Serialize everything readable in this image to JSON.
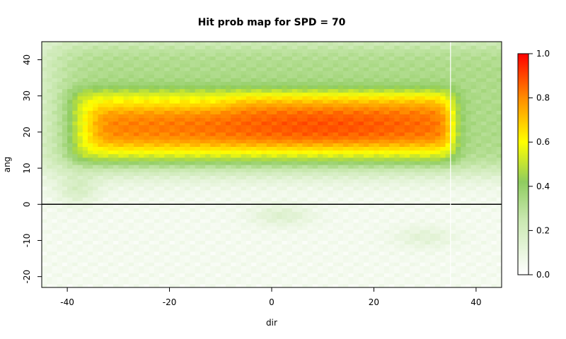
{
  "chart_data": {
    "type": "heatmap",
    "title": "Hit prob map for SPD = 70",
    "xlabel": "dir",
    "ylabel": "ang",
    "xlim": [
      -45,
      45
    ],
    "ylim": [
      -23,
      45
    ],
    "x_ticks": [
      -40,
      -20,
      0,
      20,
      40
    ],
    "y_ticks": [
      -20,
      -10,
      0,
      10,
      20,
      30,
      40
    ],
    "colorbar": {
      "range": [
        0,
        1
      ],
      "ticks": [
        "0.0",
        "0.2",
        "0.4",
        "0.6",
        "0.8",
        "1.0"
      ],
      "tick_values": [
        0,
        0.2,
        0.4,
        0.6,
        0.8,
        1.0
      ],
      "colors": [
        "#ffffff",
        "#9fd07a",
        "#ffff00",
        "#ff8000",
        "#ff0000"
      ]
    },
    "reference_lines": [
      {
        "orientation": "horizontal",
        "value": 0,
        "color": "#000000"
      },
      {
        "orientation": "vertical",
        "value": 35,
        "color": "#ffffff"
      }
    ],
    "regions": [
      {
        "label": "peak band",
        "x": [
          -35,
          35
        ],
        "y": [
          16,
          27
        ],
        "value": 0.85
      },
      {
        "label": "mid band",
        "x": [
          -38,
          36
        ],
        "y": [
          12,
          31
        ],
        "value": 0.6
      },
      {
        "label": "outer band",
        "x": [
          -45,
          45
        ],
        "y": [
          10,
          45
        ],
        "value": 0.3
      },
      {
        "label": "background",
        "x": [
          -45,
          45
        ],
        "y": [
          -23,
          10
        ],
        "value": 0.08
      }
    ]
  }
}
